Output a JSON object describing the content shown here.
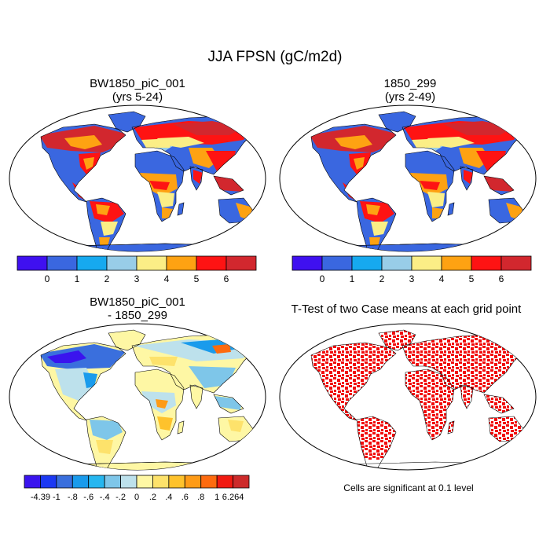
{
  "main_title": "JJA FPSN (gC/m2d)",
  "panels": [
    {
      "id": "case1",
      "title_line1": "BW1850_piC_001",
      "title_line2": "(yrs 5-24)"
    },
    {
      "id": "case2",
      "title_line1": "1850_299",
      "title_line2": "(yrs 2-49)"
    },
    {
      "id": "diff",
      "title_line1": "BW1850_piC_001",
      "title_line2": "- 1850_299"
    },
    {
      "id": "ttest",
      "title_line1": "T-Test of two Case means at each grid point",
      "title_line2": ""
    }
  ],
  "colorbar_top": {
    "colors": [
      "#3f10f0",
      "#3a67e0",
      "#16a9ef",
      "#98cde8",
      "#fbee86",
      "#fea212",
      "#fe1313",
      "#d2272e"
    ],
    "labels": [
      "0",
      "1",
      "2",
      "3",
      "4",
      "5",
      "6"
    ]
  },
  "colorbar_diff": {
    "colors": [
      "#3a14ee",
      "#1c39f3",
      "#3a6fdd",
      "#1a9bec",
      "#26b6ef",
      "#7ec6e9",
      "#bde1ec",
      "#fef7a4",
      "#fde26b",
      "#fec22c",
      "#fe9b17",
      "#fe6b0f",
      "#f11a11",
      "#cd2b2b"
    ],
    "labels": [
      "-4.39",
      "-1",
      "-.8",
      "-.6",
      "-.4",
      "-.2",
      "0",
      ".2",
      ".4",
      ".6",
      ".8",
      "1",
      "6.264"
    ]
  },
  "significance_note": "Cells are significant at 0.1 level"
}
